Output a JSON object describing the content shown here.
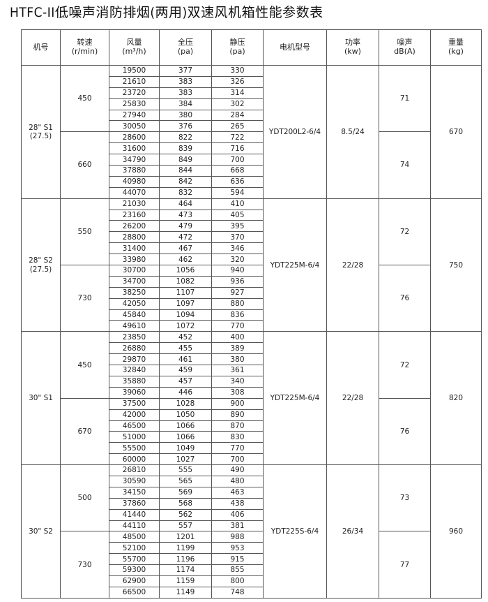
{
  "title": "HTFC-II低噪声消防排烟(两用)双速风机箱性能参数表",
  "headers": [
    "机号",
    "转速\n(r/min)",
    "风量\n(m³/h)",
    "全压\n(pa)",
    "静压\n(pa)",
    "电机型号",
    "功率\n(kw)",
    "噪声\ndB(A)",
    "重量\n(kg)"
  ],
  "groups": [
    {
      "model": "28\" S1\n(27.5)",
      "motor": "YDT200L2-6/4",
      "power": "8.5/24",
      "weight": "670",
      "speeds": [
        {
          "rpm": "450",
          "noise": "71",
          "rows": [
            [
              "19500",
              "377",
              "330"
            ],
            [
              "21610",
              "383",
              "326"
            ],
            [
              "23720",
              "383",
              "314"
            ],
            [
              "25830",
              "384",
              "302"
            ],
            [
              "27940",
              "380",
              "284"
            ],
            [
              "30050",
              "376",
              "265"
            ]
          ]
        },
        {
          "rpm": "660",
          "noise": "74",
          "rows": [
            [
              "28600",
              "822",
              "722"
            ],
            [
              "31600",
              "839",
              "716"
            ],
            [
              "34790",
              "849",
              "700"
            ],
            [
              "37880",
              "844",
              "668"
            ],
            [
              "40980",
              "842",
              "636"
            ],
            [
              "44070",
              "832",
              "594"
            ]
          ]
        }
      ]
    },
    {
      "model": "28\" S2\n(27.5)",
      "motor": "YDT225M-6/4",
      "power": "22/28",
      "weight": "750",
      "speeds": [
        {
          "rpm": "550",
          "noise": "72",
          "rows": [
            [
              "21030",
              "464",
              "410"
            ],
            [
              "23160",
              "473",
              "405"
            ],
            [
              "26200",
              "479",
              "395"
            ],
            [
              "28800",
              "472",
              "370"
            ],
            [
              "31400",
              "467",
              "346"
            ],
            [
              "33980",
              "462",
              "320"
            ]
          ]
        },
        {
          "rpm": "730",
          "noise": "76",
          "rows": [
            [
              "30700",
              "1056",
              "940"
            ],
            [
              "34700",
              "1082",
              "936"
            ],
            [
              "38250",
              "1107",
              "927"
            ],
            [
              "42050",
              "1097",
              "880"
            ],
            [
              "45840",
              "1094",
              "836"
            ],
            [
              "49610",
              "1072",
              "770"
            ]
          ]
        }
      ]
    },
    {
      "model": "30\" S1",
      "motor": "YDT225M-6/4",
      "power": "22/28",
      "weight": "820",
      "speeds": [
        {
          "rpm": "450",
          "noise": "72",
          "rows": [
            [
              "23850",
              "452",
              "400"
            ],
            [
              "26880",
              "455",
              "389"
            ],
            [
              "29870",
              "461",
              "380"
            ],
            [
              "32840",
              "459",
              "361"
            ],
            [
              "35880",
              "457",
              "340"
            ],
            [
              "39060",
              "446",
              "308"
            ]
          ]
        },
        {
          "rpm": "670",
          "noise": "76",
          "rows": [
            [
              "37500",
              "1028",
              "900"
            ],
            [
              "42000",
              "1050",
              "890"
            ],
            [
              "46500",
              "1066",
              "870"
            ],
            [
              "51000",
              "1066",
              "830"
            ],
            [
              "55500",
              "1049",
              "770"
            ],
            [
              "60000",
              "1027",
              "700"
            ]
          ]
        }
      ]
    },
    {
      "model": "30\" S2",
      "motor": "YDT225S-6/4",
      "power": "26/34",
      "weight": "960",
      "speeds": [
        {
          "rpm": "500",
          "noise": "73",
          "rows": [
            [
              "26810",
              "555",
              "490"
            ],
            [
              "30590",
              "565",
              "480"
            ],
            [
              "34150",
              "569",
              "463"
            ],
            [
              "37860",
              "568",
              "438"
            ],
            [
              "41440",
              "562",
              "406"
            ],
            [
              "44110",
              "557",
              "381"
            ]
          ]
        },
        {
          "rpm": "730",
          "noise": "77",
          "rows": [
            [
              "48500",
              "1201",
              "988"
            ],
            [
              "52100",
              "1199",
              "953"
            ],
            [
              "55700",
              "1196",
              "915"
            ],
            [
              "59300",
              "1174",
              "855"
            ],
            [
              "62900",
              "1159",
              "800"
            ],
            [
              "66500",
              "1149",
              "748"
            ]
          ]
        }
      ]
    }
  ]
}
